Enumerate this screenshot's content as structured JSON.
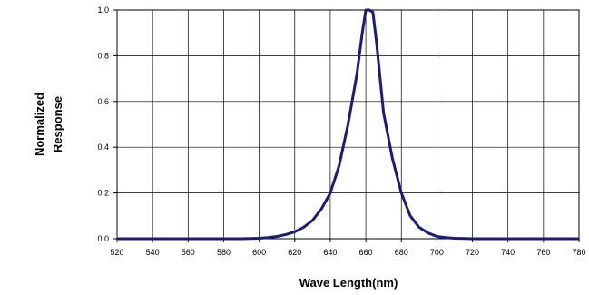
{
  "chart_data": {
    "type": "line",
    "xlabel": "Wave Length(nm)",
    "ylabel_lines": [
      "Normalized",
      "Response"
    ],
    "xlim": [
      520,
      780
    ],
    "ylim": [
      0,
      1.0
    ],
    "x_ticks": [
      "520",
      "540",
      "560",
      "580",
      "600",
      "620",
      "640",
      "660",
      "680",
      "700",
      "720",
      "740",
      "760",
      "780"
    ],
    "y_ticks": [
      "0.0",
      "0.2",
      "0.4",
      "0.6",
      "0.8",
      "1.0"
    ],
    "grid": true,
    "line_color": "#1a1a80",
    "series": [
      {
        "x": [
          520,
          530,
          540,
          550,
          560,
          570,
          580,
          590,
          600,
          605,
          610,
          615,
          620,
          625,
          630,
          635,
          640,
          645,
          650,
          655,
          658,
          660,
          662,
          664,
          666,
          670,
          675,
          680,
          685,
          690,
          695,
          700,
          705,
          710,
          720,
          730,
          740,
          750,
          760,
          770,
          780
        ],
        "y": [
          0,
          0,
          0,
          0,
          0,
          0,
          0,
          0,
          0.002,
          0.005,
          0.01,
          0.018,
          0.03,
          0.05,
          0.08,
          0.13,
          0.2,
          0.32,
          0.5,
          0.72,
          0.9,
          1.0,
          1.0,
          0.99,
          0.86,
          0.55,
          0.35,
          0.2,
          0.1,
          0.05,
          0.025,
          0.01,
          0.005,
          0.002,
          0,
          0,
          0,
          0,
          0,
          0,
          0
        ]
      }
    ]
  }
}
